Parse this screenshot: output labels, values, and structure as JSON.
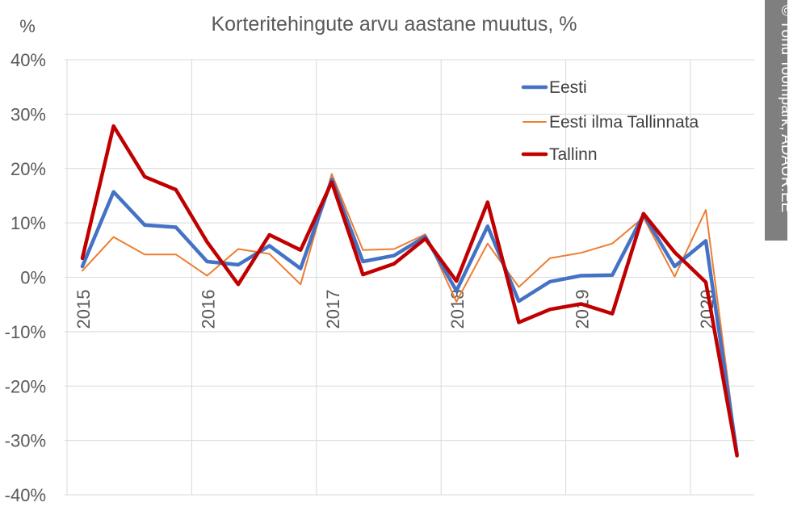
{
  "chart_data": {
    "type": "line",
    "title": "Korteritehingute arvu aastane muutus, %",
    "ylabel": "%",
    "ylim": [
      -40,
      40
    ],
    "y_ticks": [
      40,
      30,
      20,
      10,
      0,
      -10,
      -20,
      -30,
      -40
    ],
    "y_tick_labels": [
      "40%",
      "30%",
      "20%",
      "10%",
      "0%",
      "-10%",
      "-20%",
      "-30%",
      "-40%"
    ],
    "x_tick_labels": [
      "2015",
      "2016",
      "2017",
      "2018",
      "2019",
      "2020"
    ],
    "x_positions": [
      0,
      1,
      2,
      3,
      4,
      5,
      6,
      7,
      8,
      9,
      10,
      11,
      12,
      13,
      14,
      15,
      16,
      17,
      18,
      19,
      20,
      21
    ],
    "legend_position": "top-right",
    "grid": true,
    "series": [
      {
        "name": "Eesti",
        "color": "#4472c4",
        "stroke_width": "thick",
        "values": [
          2,
          15.7,
          9.6,
          9.2,
          2.9,
          2.3,
          5.8,
          1.6,
          18,
          2.9,
          4,
          7.5,
          -2.5,
          9.4,
          -4.4,
          -0.8,
          0.3,
          0.4,
          11.5,
          2,
          6.7,
          -32.5
        ]
      },
      {
        "name": "Eesti ilma Tallinnata",
        "color": "#ed7d31",
        "stroke_width": "thin",
        "values": [
          1.2,
          7.4,
          4.2,
          4.2,
          0.3,
          5.2,
          4.3,
          -1.3,
          19,
          5,
          5.2,
          7.9,
          -4.5,
          6.2,
          -1.8,
          3.5,
          4.5,
          6.2,
          11,
          0.1,
          12.4,
          -32
        ]
      },
      {
        "name": "Tallinn",
        "color": "#c00000",
        "stroke_width": "thick",
        "values": [
          3.5,
          27.8,
          18.5,
          16.1,
          6.5,
          -1.3,
          7.8,
          5,
          17.5,
          0.5,
          2.5,
          7.1,
          -0.7,
          13.8,
          -8.3,
          -5.9,
          -4.9,
          -6.7,
          11.7,
          4.6,
          -0.9,
          -32.8
        ]
      }
    ]
  },
  "credit": "© Tõnu Toompark, ADAUR.EE"
}
